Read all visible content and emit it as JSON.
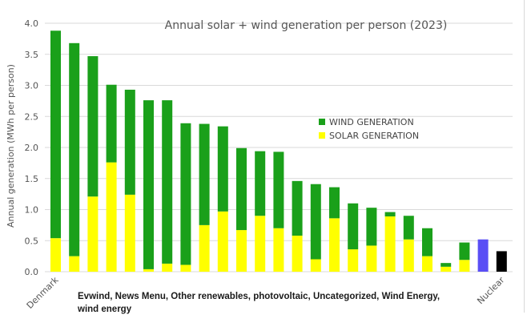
{
  "caption": "Evwind, News Menu, Other renewables, photovoltaic, Uncategorized, Wind Energy, wind energy",
  "colors": {
    "wind": "#1aa01a",
    "solar": "#ffff00",
    "other_blue": "#5a4ef5",
    "nuclear": "#000000",
    "grid": "#d9d9d9"
  },
  "chart_data": {
    "type": "bar",
    "stacked": true,
    "title": "Annual solar + wind generation per person (2023)",
    "ylabel": "Annual generation (MWh per person)",
    "xlabel": "",
    "ylim": [
      0,
      4.0
    ],
    "yticks": [
      "0.0",
      "0.5",
      "1.0",
      "1.5",
      "2.0",
      "2.5",
      "3.0",
      "3.5",
      "4.0"
    ],
    "grid": true,
    "legend_position": "center-right",
    "categories": [
      "Denmark",
      "",
      "",
      "",
      "",
      "",
      "",
      "",
      "",
      "",
      "",
      "",
      "",
      "",
      "",
      "",
      "",
      "",
      "",
      "",
      "",
      "",
      "",
      "",
      "Nuclear"
    ],
    "visible_tick_labels": {
      "first": "Denmark",
      "last": "Nuclear"
    },
    "series": [
      {
        "name": "WIND GENERATION",
        "color": "wind",
        "values": [
          3.34,
          3.43,
          2.26,
          1.25,
          1.69,
          2.72,
          2.63,
          2.28,
          1.63,
          1.37,
          1.32,
          1.04,
          1.23,
          0.88,
          1.21,
          0.5,
          0.74,
          0.61,
          0.07,
          0.38,
          0.45,
          0.06,
          0.28,
          0,
          0
        ]
      },
      {
        "name": "SOLAR GENERATION",
        "color": "solar",
        "values": [
          0.54,
          0.25,
          1.21,
          1.76,
          1.24,
          0.04,
          0.13,
          0.11,
          0.75,
          0.97,
          0.67,
          0.9,
          0.7,
          0.58,
          0.2,
          0.86,
          0.36,
          0.42,
          0.89,
          0.52,
          0.25,
          0.08,
          0.19,
          0,
          0
        ]
      },
      {
        "name": "",
        "color": "other_blue",
        "values": [
          0,
          0,
          0,
          0,
          0,
          0,
          0,
          0,
          0,
          0,
          0,
          0,
          0,
          0,
          0,
          0,
          0,
          0,
          0,
          0,
          0,
          0,
          0,
          0.52,
          0
        ]
      },
      {
        "name": "",
        "color": "nuclear",
        "values": [
          0,
          0,
          0,
          0,
          0,
          0,
          0,
          0,
          0,
          0,
          0,
          0,
          0,
          0,
          0,
          0,
          0,
          0,
          0,
          0,
          0,
          0,
          0,
          0,
          0.33
        ]
      }
    ],
    "legend": [
      {
        "label": "WIND GENERATION",
        "color": "wind"
      },
      {
        "label": "SOLAR GENERATION",
        "color": "solar"
      }
    ]
  }
}
